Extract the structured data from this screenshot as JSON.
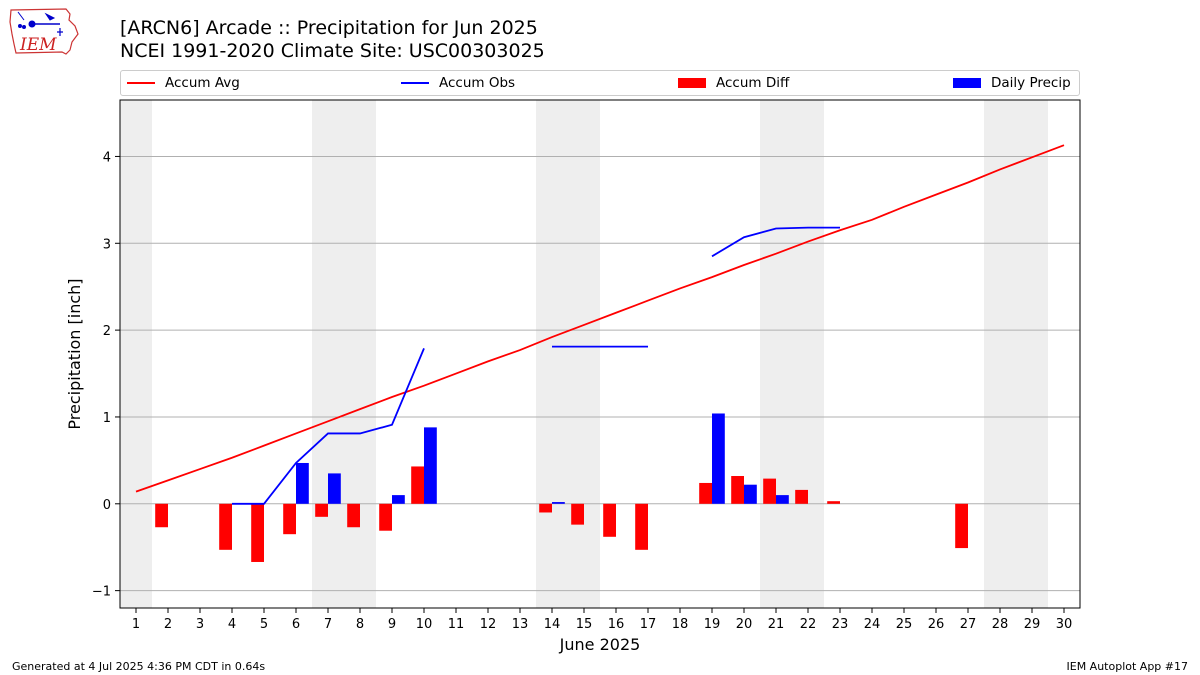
{
  "header": {
    "title_line1": "[ARCN6] Arcade :: Precipitation for Jun 2025",
    "title_line2": "NCEI 1991-2020 Climate Site: USC00303025",
    "logo_text": "IEM"
  },
  "footer": {
    "left": "Generated at 4 Jul 2025 4:36 PM CDT in 0.64s",
    "right": "IEM Autoplot App #17"
  },
  "colors": {
    "avg": "#ff0000",
    "obs": "#0000ff",
    "diff": "#ff0000",
    "daily": "#0000ff",
    "weekend": "#eeeeee",
    "grid": "#b0b0b0"
  },
  "chart_data": {
    "type": "bar",
    "xlabel": "June 2025",
    "ylabel": "Precipitation [inch]",
    "xlim": [
      0.5,
      30.5
    ],
    "ylim": [
      -1.2,
      4.65
    ],
    "x_ticks": [
      1,
      2,
      3,
      4,
      5,
      6,
      7,
      8,
      9,
      10,
      11,
      12,
      13,
      14,
      15,
      16,
      17,
      18,
      19,
      20,
      21,
      22,
      23,
      24,
      25,
      26,
      27,
      28,
      29,
      30
    ],
    "y_ticks": [
      -1,
      0,
      1,
      2,
      3,
      4
    ],
    "grid": "y",
    "legend_position": "top",
    "legend": [
      "Accum Avg",
      "Accum Obs",
      "Accum Diff",
      "Daily Precip"
    ],
    "weekend_days": [
      1,
      7,
      8,
      14,
      15,
      21,
      22,
      28,
      29
    ],
    "series": [
      {
        "name": "Accum Avg",
        "kind": "line",
        "x": [
          1,
          2,
          3,
          4,
          5,
          6,
          7,
          8,
          9,
          10,
          11,
          12,
          13,
          14,
          15,
          16,
          17,
          18,
          19,
          20,
          21,
          22,
          23,
          24,
          25,
          26,
          27,
          28,
          29,
          30
        ],
        "values": [
          0.14,
          0.27,
          0.4,
          0.53,
          0.67,
          0.81,
          0.95,
          1.09,
          1.23,
          1.36,
          1.5,
          1.64,
          1.77,
          1.92,
          2.06,
          2.2,
          2.34,
          2.48,
          2.61,
          2.75,
          2.88,
          3.02,
          3.15,
          3.27,
          3.42,
          3.56,
          3.7,
          3.85,
          3.99,
          4.13
        ]
      },
      {
        "name": "Accum Obs",
        "kind": "line",
        "segments": [
          {
            "x": [
              4,
              5,
              6,
              7,
              8,
              9,
              10
            ],
            "values": [
              0.0,
              0.0,
              0.47,
              0.81,
              0.81,
              0.91,
              1.79
            ]
          },
          {
            "x": [
              14,
              15,
              16,
              17
            ],
            "values": [
              1.81,
              1.81,
              1.81,
              1.81
            ]
          },
          {
            "x": [
              19,
              20,
              21,
              22,
              23
            ],
            "values": [
              2.85,
              3.07,
              3.17,
              3.18,
              3.18
            ]
          }
        ]
      },
      {
        "name": "Accum Diff",
        "kind": "bar",
        "x": [
          2,
          4,
          5,
          6,
          7,
          8,
          9,
          10,
          14,
          15,
          16,
          17,
          19,
          20,
          21,
          22,
          23,
          27
        ],
        "values": [
          -0.27,
          -0.53,
          -0.67,
          -0.35,
          -0.15,
          -0.27,
          -0.31,
          0.43,
          -0.1,
          -0.24,
          -0.38,
          -0.53,
          0.24,
          0.32,
          0.29,
          0.16,
          0.03,
          -0.51
        ]
      },
      {
        "name": "Daily Precip",
        "kind": "bar",
        "x": [
          6,
          7,
          9,
          10,
          14,
          19,
          20,
          21
        ],
        "values": [
          0.47,
          0.35,
          0.1,
          0.88,
          0.02,
          1.04,
          0.22,
          0.1
        ]
      }
    ]
  }
}
